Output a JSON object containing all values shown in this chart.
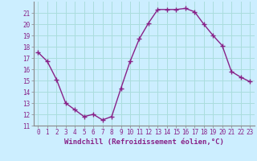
{
  "x": [
    0,
    1,
    2,
    3,
    4,
    5,
    6,
    7,
    8,
    9,
    10,
    11,
    12,
    13,
    14,
    15,
    16,
    17,
    18,
    19,
    20,
    21,
    22,
    23
  ],
  "y": [
    17.5,
    16.7,
    15.1,
    13.0,
    12.4,
    11.8,
    12.0,
    11.5,
    11.8,
    14.3,
    16.7,
    18.7,
    20.1,
    21.3,
    21.3,
    21.3,
    21.4,
    21.1,
    20.0,
    19.0,
    18.1,
    15.8,
    15.3,
    14.9
  ],
  "line_color": "#882288",
  "marker": "+",
  "marker_size": 4,
  "bg_color": "#cceeff",
  "grid_color": "#aadddd",
  "xlabel": "Windchill (Refroidissement éolien,°C)",
  "ylim": [
    11,
    22
  ],
  "xlim": [
    -0.5,
    23.5
  ],
  "yticks": [
    11,
    12,
    13,
    14,
    15,
    16,
    17,
    18,
    19,
    20,
    21
  ],
  "xticks": [
    0,
    1,
    2,
    3,
    4,
    5,
    6,
    7,
    8,
    9,
    10,
    11,
    12,
    13,
    14,
    15,
    16,
    17,
    18,
    19,
    20,
    21,
    22,
    23
  ],
  "tick_label_fontsize": 5.5,
  "xlabel_fontsize": 6.5,
  "line_width": 1.0,
  "marker_edge_width": 1.0
}
